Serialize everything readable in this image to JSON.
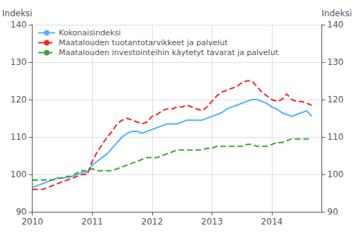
{
  "chart_data": {
    "type": "line",
    "ylabel": "Indeksi",
    "y2label": "Indeksi",
    "x": [
      2010.0,
      2010.0833333333333,
      2010.1666666666667,
      2010.25,
      2010.3333333333333,
      2010.4166666666667,
      2010.5,
      2010.5833333333333,
      2010.6666666666667,
      2010.75,
      2010.8333333333333,
      2010.9166666666667,
      2011.0,
      2011.0833333333333,
      2011.1666666666667,
      2011.25,
      2011.3333333333333,
      2011.4166666666667,
      2011.5,
      2011.5833333333333,
      2011.6666666666667,
      2011.75,
      2011.8333333333333,
      2011.9166666666667,
      2012.0,
      2012.0833333333333,
      2012.1666666666667,
      2012.25,
      2012.3333333333333,
      2012.4166666666667,
      2012.5,
      2012.5833333333333,
      2012.6666666666667,
      2012.75,
      2012.8333333333333,
      2012.9166666666667,
      2013.0,
      2013.0833333333333,
      2013.1666666666667,
      2013.25,
      2013.3333333333333,
      2013.4166666666667,
      2013.5,
      2013.5833333333333,
      2013.6666666666667,
      2013.75,
      2013.8333333333333,
      2013.9166666666667,
      2014.0,
      2014.0833333333333,
      2014.1666666666667,
      2014.25,
      2014.3333333333333,
      2014.4166666666667,
      2014.5,
      2014.5833333333333,
      2014.6666666666667
    ],
    "series": [
      {
        "name": "Kokonaisindeksi",
        "color": "#4db3ff",
        "line_style": "solid",
        "values": [
          96.5,
          97.0,
          97.5,
          98.0,
          98.5,
          99.0,
          99.0,
          99.2,
          99.5,
          100.0,
          100.5,
          100.5,
          102.5,
          103.5,
          104.5,
          105.5,
          107.0,
          108.5,
          110.0,
          111.0,
          111.5,
          111.5,
          111.0,
          111.5,
          112.0,
          112.5,
          113.0,
          113.5,
          113.5,
          113.5,
          114.0,
          114.5,
          114.5,
          114.5,
          114.5,
          115.0,
          115.5,
          116.0,
          116.5,
          117.5,
          118.0,
          118.5,
          119.0,
          119.5,
          120.0,
          120.0,
          119.5,
          119.0,
          118.0,
          117.5,
          116.5,
          116.0,
          115.5,
          116.0,
          116.5,
          117.0,
          115.5
        ]
      },
      {
        "name": "Maatalouden tuotantotarvikkeet ja palvelut",
        "color": "#ff2222",
        "line_style": "dashed",
        "values": [
          96.0,
          96.0,
          96.0,
          96.5,
          97.0,
          97.5,
          98.0,
          98.5,
          99.0,
          99.5,
          100.0,
          100.0,
          103.5,
          106.0,
          108.0,
          110.0,
          111.5,
          113.5,
          114.5,
          115.0,
          114.5,
          114.0,
          113.5,
          114.0,
          115.5,
          116.0,
          117.0,
          117.5,
          117.5,
          118.0,
          118.0,
          118.5,
          118.0,
          117.5,
          117.0,
          118.0,
          119.5,
          121.0,
          122.0,
          122.5,
          123.0,
          123.5,
          124.5,
          125.0,
          125.0,
          123.5,
          122.0,
          121.0,
          120.0,
          119.5,
          120.0,
          121.5,
          120.0,
          119.5,
          119.5,
          119.0,
          118.5
        ]
      },
      {
        "name": "Maatalouden investointeihin käytetyt tavarat ja palvelut",
        "color": "#33aa33",
        "line_style": "dashed",
        "values": [
          98.5,
          98.5,
          98.5,
          98.5,
          98.5,
          99.0,
          99.0,
          99.5,
          99.5,
          100.5,
          101.0,
          101.0,
          101.5,
          101.0,
          101.0,
          101.0,
          101.0,
          101.5,
          102.0,
          102.5,
          103.0,
          103.5,
          104.0,
          104.5,
          104.5,
          104.5,
          105.0,
          105.5,
          106.0,
          106.5,
          106.5,
          106.5,
          106.5,
          106.5,
          106.5,
          107.0,
          107.0,
          107.5,
          107.5,
          107.5,
          107.5,
          107.5,
          107.5,
          108.0,
          108.0,
          107.5,
          107.5,
          107.5,
          108.0,
          108.5,
          108.5,
          109.0,
          109.5,
          109.5,
          109.5,
          109.5,
          109.5
        ]
      }
    ],
    "xlim": [
      2010.0,
      2014.833
    ],
    "xticks": [
      2010,
      2011,
      2012,
      2013,
      2014
    ],
    "ylim": [
      90,
      140
    ],
    "yticks": [
      90,
      100,
      110,
      120,
      130,
      140
    ],
    "y2lim": [
      90,
      140
    ],
    "y2ticks": [
      90,
      100,
      110,
      120,
      130,
      140
    ],
    "grid": true,
    "legend": "upper left"
  }
}
